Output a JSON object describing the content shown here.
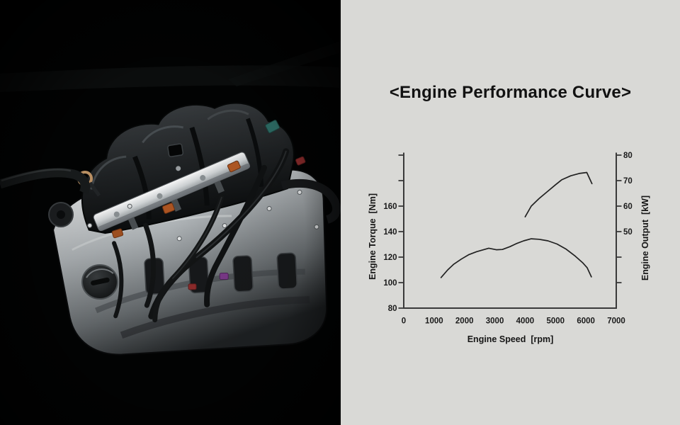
{
  "colors": {
    "panel_bg": "#d9d9d6",
    "photo_bg": "#020303",
    "chart_line": "#212121",
    "chart_axis": "#3a3a3a",
    "chart_text": "#1a1a1a"
  },
  "chart_data": {
    "type": "line",
    "title": "<Engine Performance Curve>",
    "xlabel": "Engine Speed  [rpm]",
    "ylabel_left": "Engine Torque  [Nm]",
    "ylabel_right": "Engine Output  [kW]",
    "xlim": [
      0,
      7000
    ],
    "ylim_left": [
      80,
      200
    ],
    "ylim_right": [
      20,
      80
    ],
    "x_ticks": [
      0,
      1000,
      2000,
      3000,
      4000,
      5000,
      6000,
      7000
    ],
    "y_left_tick_step": 20,
    "y_right_tick_step": 10,
    "y_left_labeled_ticks": [
      80,
      100,
      120,
      140,
      160
    ],
    "y_right_labeled_ticks": [
      50,
      60,
      70,
      80
    ],
    "grid": false,
    "legend": "none",
    "series": [
      {
        "id": "torque-curve",
        "name": "Engine Torque",
        "axis": "left",
        "unit": "Nm",
        "points": [
          [
            1230,
            104
          ],
          [
            1450,
            110
          ],
          [
            1650,
            114.5
          ],
          [
            1900,
            118.5
          ],
          [
            2150,
            122
          ],
          [
            2400,
            124.3
          ],
          [
            2800,
            127
          ],
          [
            3050,
            125.8
          ],
          [
            3250,
            126
          ],
          [
            3500,
            128.2
          ],
          [
            3700,
            130.5
          ],
          [
            3950,
            132.8
          ],
          [
            4200,
            134.4
          ],
          [
            4450,
            134
          ],
          [
            4750,
            132.8
          ],
          [
            5050,
            130.3
          ],
          [
            5350,
            126.2
          ],
          [
            5650,
            120.8
          ],
          [
            5890,
            115.7
          ],
          [
            6040,
            111.7
          ],
          [
            6180,
            104.5
          ]
        ]
      },
      {
        "id": "output-curve",
        "name": "Engine Output",
        "axis": "right",
        "unit": "kW",
        "points": [
          [
            4000,
            55.8
          ],
          [
            4200,
            60
          ],
          [
            4450,
            62.9
          ],
          [
            4700,
            65.4
          ],
          [
            5000,
            68.4
          ],
          [
            5200,
            70.3
          ],
          [
            5500,
            71.9
          ],
          [
            5780,
            72.8
          ],
          [
            6030,
            73.2
          ],
          [
            6200,
            68.8
          ]
        ]
      }
    ]
  }
}
